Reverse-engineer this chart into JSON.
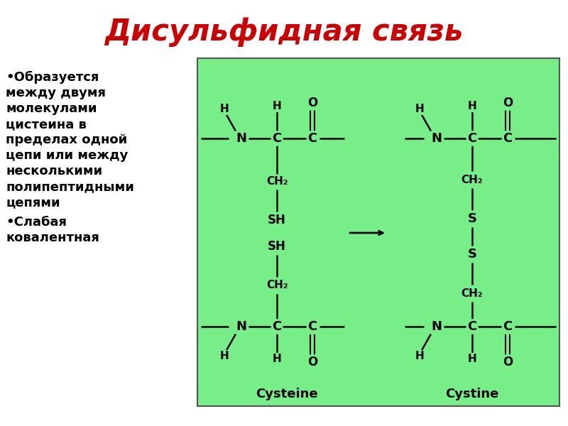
{
  "title": "Дисульфидная связь",
  "title_color": "#cc0000",
  "title_fontsize": 30,
  "bg_color": "#ffffff",
  "green_bg": "#77ee88",
  "bullet1_lines": [
    "•Образуется",
    "между двумя",
    "молекулами",
    "цистеина в",
    "пределах одной",
    "цепи или между",
    "несколькими",
    "полипептидными",
    "цепями"
  ],
  "bullet2_lines": [
    "•Слабая",
    "ковалентная"
  ],
  "text_fontsize": 13,
  "label_cysteine": "Cysteine",
  "label_cystine": "Cystine"
}
